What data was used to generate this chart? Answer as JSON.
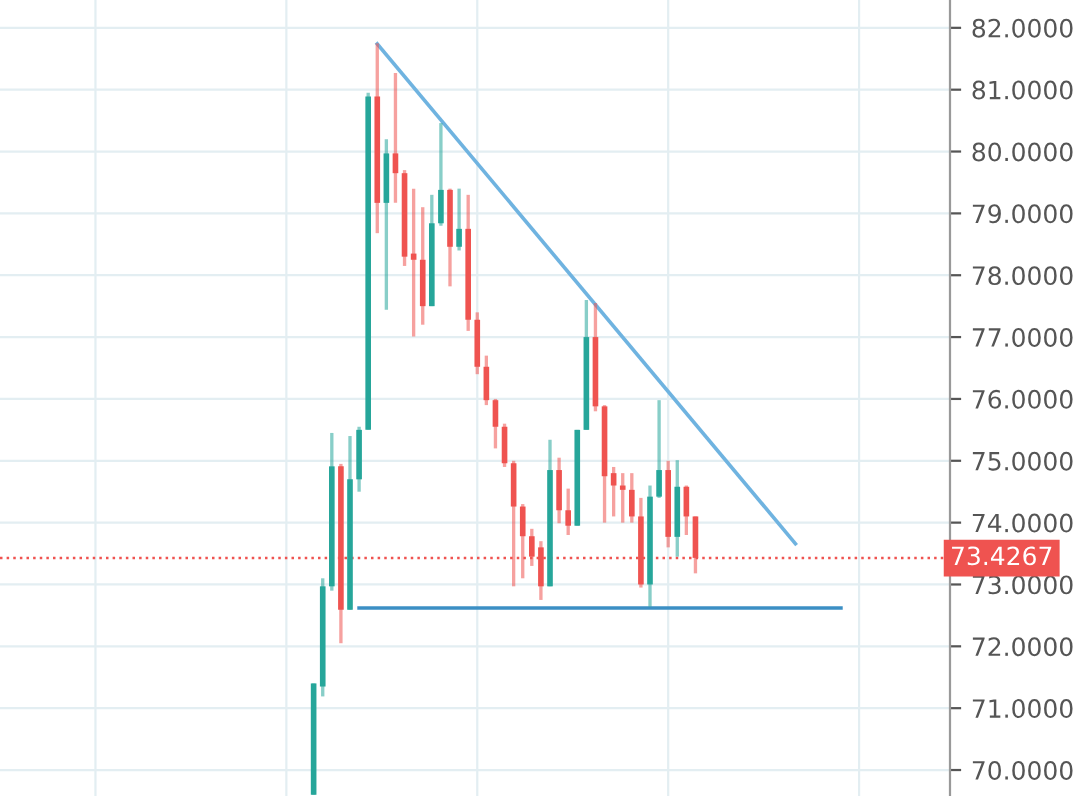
{
  "chart_data": {
    "type": "candlestick",
    "categories": [
      null,
      null,
      null,
      null,
      null,
      null,
      null,
      null,
      null,
      null,
      null,
      null,
      null,
      null,
      null,
      null,
      null,
      null,
      null,
      null,
      null,
      null,
      null,
      null,
      null,
      null,
      null,
      null,
      null,
      null,
      null,
      null,
      null,
      null,
      null,
      null,
      null,
      null,
      null,
      null,
      null,
      null,
      null,
      null,
      null,
      null,
      null,
      null,
      null,
      null,
      null,
      null,
      null,
      null,
      null,
      null,
      null,
      null,
      null
    ],
    "ohlc": [
      [
        69.6,
        71.4,
        69.6,
        71.4
      ],
      [
        71.35,
        73.1,
        71.19,
        72.97
      ],
      [
        72.97,
        75.45,
        72.9,
        74.91
      ],
      [
        74.91,
        74.95,
        72.05,
        72.59
      ],
      [
        72.59,
        75.4,
        72.59,
        74.7
      ],
      [
        74.7,
        75.55,
        74.5,
        75.5
      ],
      [
        75.5,
        80.95,
        75.5,
        80.89
      ],
      [
        80.89,
        81.75,
        78.68,
        79.17
      ],
      [
        79.17,
        80.2,
        77.44,
        79.97
      ],
      [
        79.97,
        81.27,
        79.17,
        79.65
      ],
      [
        79.65,
        79.7,
        78.15,
        78.3
      ],
      [
        78.35,
        79.4,
        77.01,
        78.25
      ],
      [
        78.25,
        79.1,
        77.2,
        77.5
      ],
      [
        77.5,
        79.3,
        77.5,
        78.84
      ],
      [
        78.84,
        80.46,
        78.8,
        79.38
      ],
      [
        79.38,
        79.4,
        77.82,
        78.46
      ],
      [
        78.46,
        79.4,
        78.4,
        78.75
      ],
      [
        78.75,
        79.3,
        77.1,
        77.28
      ],
      [
        77.28,
        77.4,
        76.4,
        76.52
      ],
      [
        76.52,
        76.7,
        75.9,
        75.98
      ],
      [
        75.98,
        76.0,
        75.2,
        75.55
      ],
      [
        75.55,
        75.6,
        74.9,
        74.96
      ],
      [
        74.96,
        75.0,
        72.97,
        74.26
      ],
      [
        74.26,
        74.3,
        73.1,
        73.78
      ],
      [
        73.78,
        73.9,
        73.3,
        73.45
      ],
      [
        73.6,
        73.7,
        72.75,
        72.97
      ],
      [
        72.97,
        75.34,
        72.97,
        74.85
      ],
      [
        74.85,
        75.05,
        73.99,
        74.2
      ],
      [
        74.2,
        74.55,
        73.8,
        73.95
      ],
      [
        73.95,
        75.5,
        73.95,
        75.5
      ],
      [
        75.5,
        77.6,
        75.5,
        77.0
      ],
      [
        77.0,
        77.55,
        75.8,
        75.88
      ],
      [
        75.88,
        75.9,
        74.0,
        74.75
      ],
      [
        74.8,
        74.9,
        74.1,
        74.6
      ],
      [
        74.6,
        74.8,
        74.0,
        74.53
      ],
      [
        74.53,
        74.8,
        74.0,
        74.1
      ],
      [
        74.1,
        74.4,
        72.95,
        73.0
      ],
      [
        73.0,
        74.6,
        72.64,
        74.42
      ],
      [
        74.42,
        75.98,
        74.4,
        74.85
      ],
      [
        74.85,
        75.0,
        73.6,
        73.77
      ],
      [
        73.77,
        75.01,
        73.45,
        74.58
      ],
      [
        74.58,
        74.6,
        73.8,
        74.1
      ],
      [
        74.1,
        74.1,
        73.18,
        73.43
      ],
      null,
      null,
      null,
      null,
      null,
      null,
      null,
      null,
      null,
      null,
      null,
      null,
      null,
      null,
      null,
      null
    ],
    "colors": [
      "#26a69a",
      "#26a69a",
      "#26a69a",
      "#ef5350",
      "#26a69a",
      "#26a69a",
      "#26a69a",
      "#ef5350",
      "#26a69a",
      "#ef5350",
      "#ef5350",
      "#ef5350",
      "#ef5350",
      "#26a69a",
      "#26a69a",
      "#ef5350",
      "#26a69a",
      "#ef5350",
      "#ef5350",
      "#ef5350",
      "#ef5350",
      "#ef5350",
      "#ef5350",
      "#ef5350",
      "#ef5350",
      "#ef5350",
      "#26a69a",
      "#ef5350",
      "#ef5350",
      "#26a69a",
      "#26a69a",
      "#ef5350",
      "#ef5350",
      "#ef5350",
      "#ef5350",
      "#ef5350",
      "#ef5350",
      "#26a69a",
      "#26a69a",
      "#ef5350",
      "#26a69a",
      "#ef5350",
      "#ef5350",
      null,
      null,
      null,
      null,
      null,
      null,
      null,
      null,
      null,
      null,
      null,
      null,
      null,
      null,
      null,
      null
    ],
    "series": [
      {
        "type": "line",
        "color": "#6fb3e0",
        "values": [
          null,
          null,
          null,
          null,
          null,
          null,
          null,
          81.74,
          null,
          null,
          null,
          null,
          null,
          null,
          null,
          null,
          null,
          null,
          null,
          null,
          null,
          null,
          null,
          null,
          null,
          null,
          null,
          null,
          null,
          null,
          null,
          null,
          null,
          null,
          null,
          null,
          null,
          null,
          null,
          null,
          null,
          null,
          null,
          null,
          null,
          null,
          null,
          null,
          null,
          null,
          null,
          null,
          null,
          73.66,
          null,
          null,
          null,
          null,
          null
        ]
      },
      {
        "type": "line",
        "color": "#3b8fc4",
        "values": [
          null,
          null,
          null,
          null,
          null,
          72.62,
          null,
          null,
          null,
          null,
          null,
          null,
          null,
          null,
          null,
          null,
          null,
          null,
          null,
          null,
          null,
          null,
          null,
          null,
          null,
          null,
          null,
          null,
          null,
          null,
          null,
          null,
          null,
          null,
          null,
          null,
          null,
          null,
          null,
          null,
          null,
          null,
          null,
          null,
          null,
          null,
          null,
          null,
          null,
          null,
          null,
          null,
          null,
          null,
          null,
          null,
          null,
          null,
          72.62
        ]
      }
    ],
    "ref_lines": [
      {
        "axis": "y",
        "value": 73.4267,
        "label": "73.4267",
        "color": "#ef5350",
        "line_style": "dotted"
      }
    ],
    "ylim": [
      69.58,
      82.45
    ],
    "yticks": [
      {
        "value": 70,
        "label": "70.0000"
      },
      {
        "value": 71,
        "label": "71.0000"
      },
      {
        "value": 72,
        "label": "72.0000"
      },
      {
        "value": 73,
        "label": "73.0000"
      },
      {
        "value": 74,
        "label": "74.0000"
      },
      {
        "value": 75,
        "label": "75.0000"
      },
      {
        "value": 76,
        "label": "76.0000"
      },
      {
        "value": 77,
        "label": "77.0000"
      },
      {
        "value": 78,
        "label": "78.0000"
      },
      {
        "value": 79,
        "label": "79.0000"
      },
      {
        "value": 80,
        "label": "80.0000"
      },
      {
        "value": 81,
        "label": "81.0000"
      },
      {
        "value": 82,
        "label": "82.0000"
      }
    ],
    "tick_labels": "y",
    "grid": true
  }
}
